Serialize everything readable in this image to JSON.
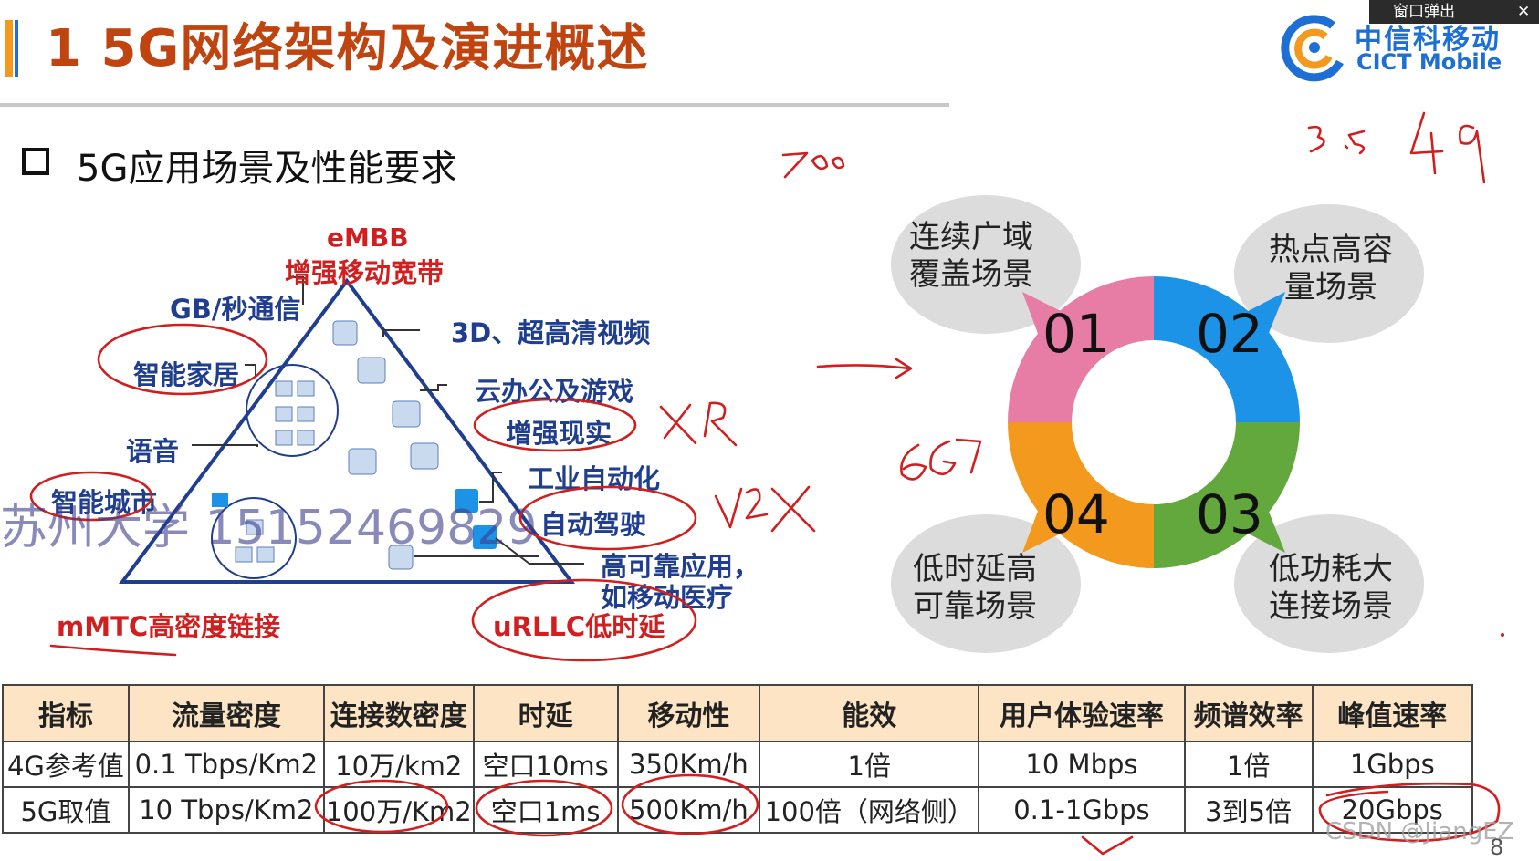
{
  "slide": {
    "title": "1 5G网络架构及演进概述",
    "subtitle": "5G应用场景及性能要求",
    "page_number": "8"
  },
  "logo": {
    "name_cn": "中信科移动",
    "name_en": "CICT Mobile",
    "brand_color": "#1d6fd4"
  },
  "popup": {
    "label": "窗口弹出",
    "close": "✕"
  },
  "triangle": {
    "top_label": "eMBB",
    "top_sub": "增强移动宽带",
    "bottom_left": "mMTC高密度链接",
    "bottom_right": "uRLLC低时延",
    "labels": [
      "GB/秒通信",
      "3D、超高清视频",
      "智能家居",
      "云办公及游戏",
      "增强现实",
      "语音",
      "工业自动化",
      "智能城市",
      "自动驾驶",
      "高可靠应用，",
      "如移动医疗"
    ]
  },
  "ring": {
    "segments": [
      {
        "num": "01",
        "label1": "连续广域",
        "label2": "覆盖场景",
        "color": "#e77da4"
      },
      {
        "num": "02",
        "label1": "热点高容",
        "label2": "量场景",
        "color": "#1d93e8"
      },
      {
        "num": "03",
        "label1": "低功耗大",
        "label2": "连接场景",
        "color": "#62a83d"
      },
      {
        "num": "04",
        "label1": "低时延高",
        "label2": "可靠场景",
        "color": "#f39a1e"
      }
    ]
  },
  "table": {
    "headers": [
      "指标",
      "流量密度",
      "连接数密度",
      "时延",
      "移动性",
      "能效",
      "用户体验速率",
      "频谱效率",
      "峰值速率"
    ],
    "rows": [
      [
        "4G参考值",
        "0.1 Tbps/Km2",
        "10万/km2",
        "空口10ms",
        "350Km/h",
        "1倍",
        "10 Mbps",
        "1倍",
        "1Gbps"
      ],
      [
        "5G取值",
        "10 Tbps/Km2",
        "100万/Km2",
        "空口1ms",
        "500Km/h",
        "100倍（网络侧）",
        "0.1-1Gbps",
        "3到5倍",
        "20Gbps"
      ]
    ]
  },
  "watermark": "苏州大学 15152469829",
  "csdn_mark": "CSDN @JiangEZ"
}
